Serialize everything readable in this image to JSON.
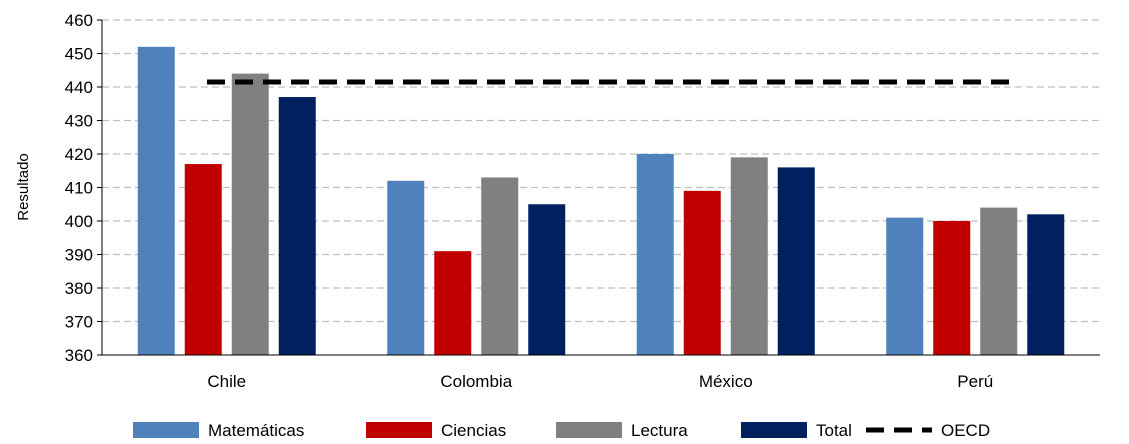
{
  "chart_data": {
    "type": "bar",
    "title": "",
    "xlabel": "",
    "ylabel": "Resultado",
    "ylim": [
      360,
      460
    ],
    "yticks": [
      360,
      370,
      380,
      390,
      400,
      410,
      420,
      430,
      440,
      450,
      460
    ],
    "grid": "horizontal-dashed",
    "legend_position": "bottom",
    "categories": [
      "Chile",
      "Colombia",
      "México",
      "Perú"
    ],
    "series": [
      {
        "name": "Matemáticas",
        "color": "#4F81BD",
        "values": [
          452,
          412,
          420,
          401
        ]
      },
      {
        "name": "Ciencias",
        "color": "#C00000",
        "values": [
          417,
          391,
          409,
          400
        ]
      },
      {
        "name": "Lectura",
        "color": "#808080",
        "values": [
          444,
          413,
          419,
          404
        ]
      },
      {
        "name": "Total",
        "color": "#002060",
        "values": [
          437,
          405,
          416,
          402
        ]
      }
    ],
    "reference_line": {
      "name": "OECD",
      "value": 441.5,
      "color": "#000000",
      "style": "dashed"
    }
  }
}
